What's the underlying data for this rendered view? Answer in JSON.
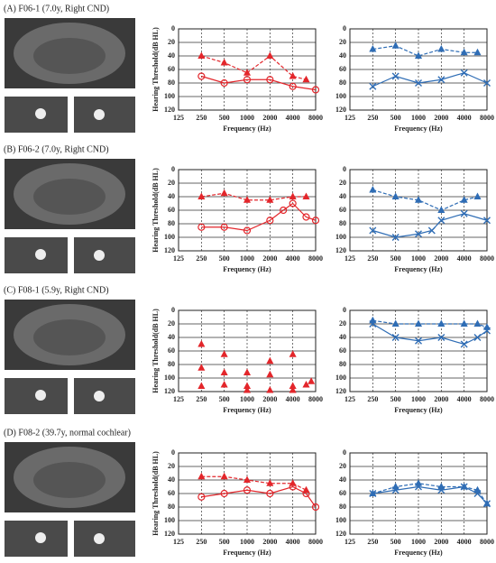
{
  "panels": [
    {
      "label": "(A)   F06-1 (7.0y, Right CND)"
    },
    {
      "label": "(B)   F06-2 (7.0y, Right CND)"
    },
    {
      "label": "(C)   F08-1 (5.9y, Right CND)"
    },
    {
      "label": "(D)   F08-2 (39.7y, normal cochlear)"
    }
  ],
  "chart_data": [
    {
      "type": "line",
      "xlabel": "Frequency (Hz)",
      "ylabel": "Hearing Threshold(dB HL)",
      "xscale": "log",
      "xlim": [
        125,
        8000
      ],
      "xticks": [
        125,
        250,
        500,
        1000,
        2000,
        4000,
        8000
      ],
      "ylim": [
        120,
        0
      ],
      "yticks": [
        0,
        20,
        40,
        60,
        80,
        100,
        120
      ],
      "grid": true,
      "series": [
        {
          "color": "#e3262b",
          "marker": "triangle",
          "linestyle": "dashed",
          "x": [
            250,
            500,
            1000,
            2000,
            4000,
            6000
          ],
          "values": [
            40,
            50,
            65,
            40,
            70,
            75
          ]
        },
        {
          "color": "#e3262b",
          "marker": "circle",
          "linestyle": "solid",
          "x": [
            250,
            500,
            1000,
            2000,
            4000,
            8000
          ],
          "values": [
            70,
            80,
            75,
            75,
            85,
            90
          ]
        }
      ]
    },
    {
      "type": "line",
      "xlabel": "Frequency (Hz)",
      "xscale": "log",
      "xlim": [
        125,
        8000
      ],
      "xticks": [
        125,
        250,
        500,
        1000,
        2000,
        4000,
        8000
      ],
      "ylim": [
        120,
        0
      ],
      "yticks": [
        0,
        20,
        40,
        60,
        80,
        100,
        120
      ],
      "grid": true,
      "series": [
        {
          "color": "#2f6db5",
          "marker": "triangle",
          "linestyle": "dashed",
          "x": [
            250,
            500,
            1000,
            2000,
            4000,
            6000
          ],
          "values": [
            30,
            25,
            40,
            30,
            35,
            35
          ]
        },
        {
          "color": "#2f6db5",
          "marker": "x",
          "linestyle": "solid",
          "x": [
            250,
            500,
            1000,
            2000,
            4000,
            8000
          ],
          "values": [
            85,
            70,
            80,
            75,
            65,
            80
          ]
        }
      ]
    },
    {
      "type": "line",
      "xlabel": "Frequency (Hz)",
      "ylabel": "Hearing Threshold(dB HL)",
      "xscale": "log",
      "xlim": [
        125,
        8000
      ],
      "xticks": [
        125,
        250,
        500,
        1000,
        2000,
        4000,
        8000
      ],
      "ylim": [
        120,
        0
      ],
      "yticks": [
        0,
        20,
        40,
        60,
        80,
        100,
        120
      ],
      "grid": true,
      "series": [
        {
          "color": "#e3262b",
          "marker": "triangle",
          "linestyle": "dashed",
          "x": [
            250,
            500,
            1000,
            2000,
            4000,
            6000
          ],
          "values": [
            40,
            35,
            45,
            45,
            40,
            40
          ]
        },
        {
          "color": "#e3262b",
          "marker": "circle",
          "linestyle": "solid",
          "x": [
            250,
            500,
            1000,
            2000,
            3000,
            4000,
            6000,
            8000
          ],
          "values": [
            85,
            85,
            90,
            75,
            60,
            50,
            70,
            75
          ]
        }
      ]
    },
    {
      "type": "line",
      "xlabel": "Frequency (Hz)",
      "xscale": "log",
      "xlim": [
        125,
        8000
      ],
      "xticks": [
        125,
        250,
        500,
        1000,
        2000,
        4000,
        8000
      ],
      "ylim": [
        120,
        0
      ],
      "yticks": [
        0,
        20,
        40,
        60,
        80,
        100,
        120
      ],
      "grid": true,
      "series": [
        {
          "color": "#2f6db5",
          "marker": "triangle",
          "linestyle": "dashed",
          "x": [
            250,
            500,
            1000,
            2000,
            4000,
            6000
          ],
          "values": [
            30,
            40,
            45,
            60,
            45,
            40
          ]
        },
        {
          "color": "#2f6db5",
          "marker": "x",
          "linestyle": "solid",
          "x": [
            250,
            500,
            1000,
            1500,
            2000,
            4000,
            8000
          ],
          "values": [
            90,
            100,
            95,
            90,
            75,
            65,
            75
          ]
        }
      ]
    },
    {
      "type": "line",
      "xlabel": "Frequency (Hz)",
      "ylabel": "Hearing Threshold(dB HL)",
      "xscale": "log",
      "xlim": [
        125,
        8000
      ],
      "xticks": [
        125,
        250,
        500,
        1000,
        2000,
        4000,
        8000
      ],
      "ylim": [
        120,
        0
      ],
      "yticks": [
        0,
        20,
        40,
        60,
        80,
        100,
        120
      ],
      "grid": true,
      "series": [
        {
          "color": "#e3262b",
          "marker": "triangle",
          "linestyle": "none",
          "x": [
            250,
            250,
            250,
            500,
            500,
            500,
            1000,
            1000,
            1000,
            2000,
            2000,
            2000,
            4000,
            4000,
            4000,
            6000,
            7000
          ],
          "values": [
            50,
            85,
            112,
            65,
            92,
            110,
            92,
            112,
            118,
            75,
            95,
            118,
            65,
            112,
            118,
            110,
            105
          ]
        }
      ]
    },
    {
      "type": "line",
      "xlabel": "Frequency (Hz)",
      "xscale": "log",
      "xlim": [
        125,
        8000
      ],
      "xticks": [
        125,
        250,
        500,
        1000,
        2000,
        4000,
        8000
      ],
      "ylim": [
        120,
        0
      ],
      "yticks": [
        0,
        20,
        40,
        60,
        80,
        100,
        120
      ],
      "grid": true,
      "series": [
        {
          "color": "#2f6db5",
          "marker": "triangle",
          "linestyle": "dashed",
          "x": [
            250,
            500,
            1000,
            2000,
            4000,
            6000,
            8000
          ],
          "values": [
            15,
            20,
            20,
            20,
            20,
            20,
            25
          ]
        },
        {
          "color": "#2f6db5",
          "marker": "x",
          "linestyle": "solid",
          "x": [
            250,
            500,
            1000,
            2000,
            4000,
            6000,
            8000
          ],
          "values": [
            20,
            40,
            45,
            40,
            50,
            40,
            30
          ]
        }
      ]
    },
    {
      "type": "line",
      "xlabel": "Frequency (Hz)",
      "ylabel": "Hearing Threshold(dB HL)",
      "xscale": "log",
      "xlim": [
        125,
        8000
      ],
      "xticks": [
        125,
        250,
        500,
        1000,
        2000,
        4000,
        8000
      ],
      "ylim": [
        120,
        0
      ],
      "yticks": [
        0,
        20,
        40,
        60,
        80,
        100,
        120
      ],
      "grid": true,
      "series": [
        {
          "color": "#e3262b",
          "marker": "triangle",
          "linestyle": "dashed",
          "x": [
            250,
            500,
            1000,
            2000,
            4000,
            6000
          ],
          "values": [
            35,
            35,
            40,
            45,
            45,
            55
          ]
        },
        {
          "color": "#e3262b",
          "marker": "circle",
          "linestyle": "solid",
          "x": [
            250,
            500,
            1000,
            2000,
            4000,
            6000,
            8000
          ],
          "values": [
            65,
            60,
            55,
            60,
            50,
            60,
            80
          ]
        }
      ]
    },
    {
      "type": "line",
      "xlabel": "Frequency (Hz)",
      "xscale": "log",
      "xlim": [
        125,
        8000
      ],
      "xticks": [
        125,
        250,
        500,
        1000,
        2000,
        4000,
        8000
      ],
      "ylim": [
        120,
        0
      ],
      "yticks": [
        0,
        20,
        40,
        60,
        80,
        100,
        120
      ],
      "grid": true,
      "series": [
        {
          "color": "#2f6db5",
          "marker": "triangle",
          "linestyle": "dashed",
          "x": [
            250,
            500,
            1000,
            2000,
            4000,
            6000,
            8000
          ],
          "values": [
            60,
            50,
            45,
            50,
            50,
            55,
            75
          ]
        },
        {
          "color": "#2f6db5",
          "marker": "x",
          "linestyle": "solid",
          "x": [
            250,
            500,
            1000,
            2000,
            4000,
            6000,
            8000
          ],
          "values": [
            60,
            55,
            50,
            55,
            50,
            60,
            75
          ]
        }
      ]
    }
  ]
}
